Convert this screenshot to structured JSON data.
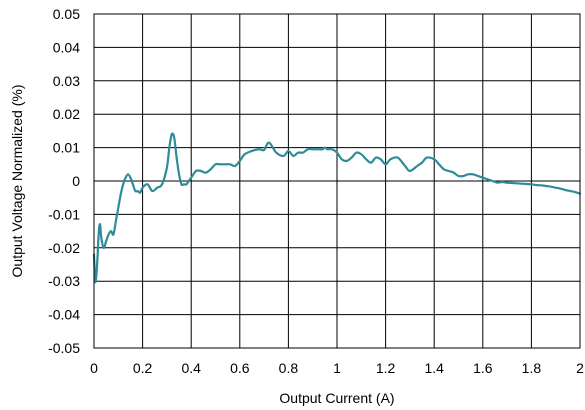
{
  "chart_data": {
    "type": "line",
    "xlabel": "Output Current (A)",
    "ylabel": "Output Voltage Normalized (%)",
    "xlim": [
      0,
      2
    ],
    "ylim": [
      -0.05,
      0.05
    ],
    "x_ticks": [
      0,
      0.2,
      0.4,
      0.6,
      0.8,
      1,
      1.2,
      1.4,
      1.6,
      1.8,
      2
    ],
    "x_tick_labels": [
      "0",
      "0.2",
      "0.4",
      "0.6",
      "0.8",
      "1",
      "1.2",
      "1.4",
      "1.6",
      "1.8",
      "2"
    ],
    "y_ticks": [
      -0.05,
      -0.04,
      -0.03,
      -0.02,
      -0.01,
      0,
      0.01,
      0.02,
      0.03,
      0.04,
      0.05
    ],
    "y_tick_labels": [
      "-0.05",
      "-0.04",
      "-0.03",
      "-0.02",
      "-0.01",
      "0",
      "0.01",
      "0.02",
      "0.03",
      "0.04",
      "0.05"
    ],
    "grid": true,
    "line_color": "#2e8b9a",
    "series": [
      {
        "x": [
          0.0,
          0.005,
          0.01,
          0.015,
          0.02,
          0.025,
          0.03,
          0.04,
          0.05,
          0.06,
          0.07,
          0.08,
          0.09,
          0.1,
          0.11,
          0.12,
          0.13,
          0.14,
          0.15,
          0.16,
          0.17,
          0.18,
          0.19,
          0.2,
          0.22,
          0.24,
          0.26,
          0.28,
          0.3,
          0.31,
          0.32,
          0.33,
          0.34,
          0.35,
          0.36,
          0.37,
          0.38,
          0.39,
          0.4,
          0.42,
          0.44,
          0.46,
          0.48,
          0.5,
          0.52,
          0.54,
          0.56,
          0.58,
          0.6,
          0.62,
          0.65,
          0.68,
          0.7,
          0.72,
          0.75,
          0.78,
          0.8,
          0.82,
          0.84,
          0.86,
          0.88,
          0.9,
          0.92,
          0.94,
          0.95,
          0.96,
          0.98,
          1.0,
          1.02,
          1.04,
          1.06,
          1.08,
          1.1,
          1.12,
          1.14,
          1.16,
          1.18,
          1.2,
          1.22,
          1.25,
          1.28,
          1.3,
          1.33,
          1.35,
          1.37,
          1.4,
          1.42,
          1.44,
          1.46,
          1.48,
          1.5,
          1.52,
          1.54,
          1.56,
          1.58,
          1.6,
          1.62,
          1.64,
          1.66,
          1.68,
          1.7,
          1.72,
          1.74,
          1.76,
          1.78,
          1.8,
          1.82,
          1.84,
          1.86,
          1.88,
          1.9,
          1.92,
          1.94,
          1.96,
          1.98,
          2.0
        ],
        "y": [
          -0.022,
          -0.03,
          -0.028,
          -0.022,
          -0.015,
          -0.013,
          -0.017,
          -0.02,
          -0.018,
          -0.016,
          -0.015,
          -0.016,
          -0.012,
          -0.008,
          -0.004,
          -0.001,
          0.001,
          0.002,
          0.001,
          -0.001,
          -0.003,
          -0.003,
          -0.0035,
          -0.002,
          -0.001,
          -0.003,
          -0.002,
          -0.001,
          0.004,
          0.01,
          0.014,
          0.013,
          0.007,
          0.002,
          -0.001,
          -0.001,
          -0.001,
          0.0,
          0.001,
          0.003,
          0.003,
          0.0025,
          0.0035,
          0.005,
          0.005,
          0.005,
          0.005,
          0.0045,
          0.006,
          0.008,
          0.009,
          0.0095,
          0.0093,
          0.0115,
          0.0085,
          0.0075,
          0.009,
          0.0075,
          0.0085,
          0.0085,
          0.0095,
          0.0095,
          0.0095,
          0.0095,
          0.01,
          0.0095,
          0.0095,
          0.0085,
          0.0065,
          0.006,
          0.007,
          0.0085,
          0.008,
          0.0065,
          0.0055,
          0.007,
          0.0065,
          0.005,
          0.0065,
          0.007,
          0.0045,
          0.003,
          0.0045,
          0.0055,
          0.007,
          0.0065,
          0.005,
          0.0035,
          0.003,
          0.0025,
          0.0015,
          0.0015,
          0.002,
          0.002,
          0.0015,
          0.001,
          0.0005,
          0.0,
          -0.0005,
          -0.0003,
          -0.0005,
          -0.0006,
          -0.0007,
          -0.0008,
          -0.0009,
          -0.001,
          -0.0012,
          -0.0013,
          -0.0015,
          -0.0017,
          -0.002,
          -0.0023,
          -0.0027,
          -0.003,
          -0.0033,
          -0.0038
        ]
      }
    ]
  }
}
